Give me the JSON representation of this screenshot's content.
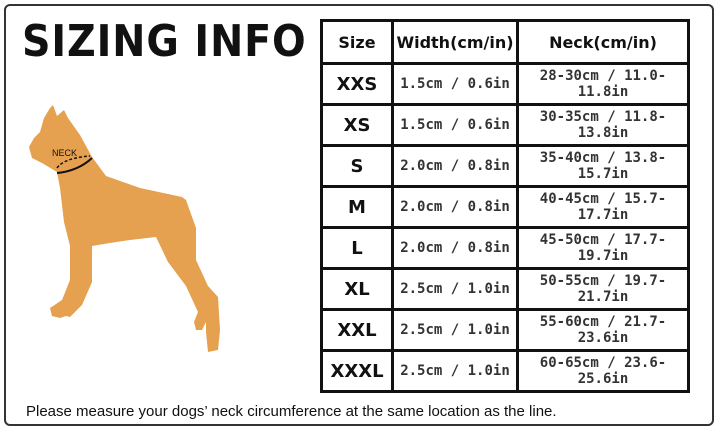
{
  "title": "SIZING INFO",
  "dog": {
    "label": "NECK",
    "color": "#E5A050"
  },
  "table": {
    "headers": [
      "Size",
      "Width(cm/in)",
      "Neck(cm/in)"
    ],
    "rows": [
      {
        "size": "XXS",
        "width": "1.5cm / 0.6in",
        "neck": "28-30cm / 11.0-11.8in"
      },
      {
        "size": "XS",
        "width": "1.5cm / 0.6in",
        "neck": "30-35cm / 11.8-13.8in"
      },
      {
        "size": "S",
        "width": "2.0cm / 0.8in",
        "neck": "35-40cm / 13.8-15.7in"
      },
      {
        "size": "M",
        "width": "2.0cm / 0.8in",
        "neck": "40-45cm / 15.7-17.7in"
      },
      {
        "size": "L",
        "width": "2.0cm / 0.8in",
        "neck": "45-50cm / 17.7-19.7in"
      },
      {
        "size": "XL",
        "width": "2.5cm / 1.0in",
        "neck": "50-55cm / 19.7-21.7in"
      },
      {
        "size": "XXL",
        "width": "2.5cm / 1.0in",
        "neck": "55-60cm / 21.7-23.6in"
      },
      {
        "size": "XXXL",
        "width": "2.5cm / 1.0in",
        "neck": "60-65cm / 23.6-25.6in"
      }
    ]
  },
  "note": "Please measure your dogs’  neck circumference at the same location as the line."
}
